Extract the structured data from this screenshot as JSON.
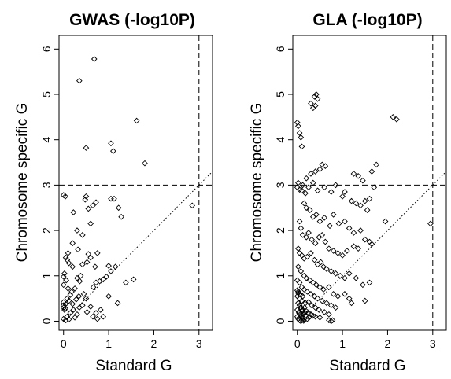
{
  "chart_data": [
    {
      "type": "scatter",
      "title": "GWAS (-log10P)",
      "xlabel": "Standard G",
      "ylabel": "Chromosome specific G",
      "xlim": [
        -0.1,
        3.3
      ],
      "ylim": [
        -0.2,
        6.3
      ],
      "xticks": [
        "0",
        "1",
        "2",
        "3"
      ],
      "yticks": [
        "0",
        "1",
        "2",
        "3",
        "4",
        "5",
        "6"
      ],
      "marker": "open-diamond",
      "reference_lines": {
        "vertical_x": 3,
        "horizontal_y": 3,
        "diagonal": "y = x"
      },
      "series": [
        {
          "points": [
            [
              0.68,
              5.78
            ],
            [
              0.35,
              5.3
            ],
            [
              1.62,
              4.42
            ],
            [
              1.05,
              3.92
            ],
            [
              1.1,
              3.75
            ],
            [
              0.5,
              3.82
            ],
            [
              1.8,
              3.48
            ],
            [
              0.0,
              2.78
            ],
            [
              0.04,
              2.75
            ],
            [
              0.5,
              2.75
            ],
            [
              0.48,
              2.68
            ],
            [
              0.72,
              2.62
            ],
            [
              0.55,
              2.48
            ],
            [
              0.65,
              2.55
            ],
            [
              1.05,
              2.7
            ],
            [
              1.12,
              2.7
            ],
            [
              1.22,
              2.5
            ],
            [
              1.28,
              2.3
            ],
            [
              0.22,
              2.4
            ],
            [
              0.6,
              2.15
            ],
            [
              2.85,
              2.55
            ],
            [
              0.3,
              2.0
            ],
            [
              0.42,
              1.9
            ],
            [
              0.2,
              1.72
            ],
            [
              0.32,
              1.58
            ],
            [
              0.1,
              1.5
            ],
            [
              0.05,
              1.4
            ],
            [
              0.08,
              1.35
            ],
            [
              0.12,
              1.28
            ],
            [
              0.2,
              1.2
            ],
            [
              0.55,
              1.48
            ],
            [
              0.6,
              1.4
            ],
            [
              0.52,
              1.3
            ],
            [
              0.42,
              1.25
            ],
            [
              0.75,
              1.5
            ],
            [
              0.7,
              1.2
            ],
            [
              1.0,
              1.22
            ],
            [
              1.05,
              1.1
            ],
            [
              0.95,
              0.98
            ],
            [
              0.88,
              0.92
            ],
            [
              0.8,
              0.88
            ],
            [
              0.72,
              0.85
            ],
            [
              0.66,
              0.75
            ],
            [
              1.15,
              1.2
            ],
            [
              1.2,
              0.4
            ],
            [
              1.38,
              0.85
            ],
            [
              1.55,
              0.92
            ],
            [
              0.02,
              1.05
            ],
            [
              0.0,
              0.98
            ],
            [
              0.06,
              0.9
            ],
            [
              0.0,
              0.8
            ],
            [
              0.1,
              0.72
            ],
            [
              0.18,
              0.65
            ],
            [
              0.25,
              0.72
            ],
            [
              0.3,
              0.95
            ],
            [
              0.38,
              1.0
            ],
            [
              0.36,
              0.88
            ],
            [
              0.15,
              0.58
            ],
            [
              0.08,
              0.5
            ],
            [
              0.0,
              0.42
            ],
            [
              0.05,
              0.38
            ],
            [
              0.12,
              0.45
            ],
            [
              0.2,
              0.38
            ],
            [
              0.28,
              0.48
            ],
            [
              0.34,
              0.55
            ],
            [
              0.45,
              0.6
            ],
            [
              0.5,
              0.5
            ],
            [
              0.42,
              0.35
            ],
            [
              0.35,
              0.3
            ],
            [
              0.22,
              0.25
            ],
            [
              0.15,
              0.18
            ],
            [
              0.08,
              0.1
            ],
            [
              0.0,
              0.05
            ],
            [
              0.05,
              0.02
            ],
            [
              0.12,
              0.04
            ],
            [
              0.25,
              0.08
            ],
            [
              0.3,
              0.15
            ],
            [
              0.52,
              0.2
            ],
            [
              0.6,
              0.32
            ],
            [
              0.72,
              0.18
            ],
            [
              0.75,
              0.05
            ],
            [
              0.82,
              0.25
            ],
            [
              0.88,
              0.1
            ],
            [
              1.0,
              0.55
            ],
            [
              0.65,
              0.1
            ],
            [
              0.0,
              0.3
            ],
            [
              0.02,
              0.25
            ],
            [
              0.0,
              0.35
            ],
            [
              0.04,
              0.28
            ]
          ]
        }
      ]
    },
    {
      "type": "scatter",
      "title": "GLA (-log10P)",
      "xlabel": "Standard G",
      "ylabel": "Chromosome specific G",
      "xlim": [
        -0.1,
        3.3
      ],
      "ylim": [
        -0.2,
        6.3
      ],
      "xticks": [
        "0",
        "1",
        "2",
        "3"
      ],
      "yticks": [
        "0",
        "1",
        "2",
        "3",
        "4",
        "5",
        "6"
      ],
      "marker": "open-diamond",
      "reference_lines": {
        "vertical_x": 3,
        "horizontal_y": 3,
        "diagonal": "y = x"
      },
      "series": [
        {
          "points": [
            [
              0.38,
              4.95
            ],
            [
              0.42,
              5.0
            ],
            [
              0.45,
              4.9
            ],
            [
              0.4,
              4.75
            ],
            [
              0.3,
              4.8
            ],
            [
              0.35,
              4.7
            ],
            [
              0.0,
              4.38
            ],
            [
              0.02,
              4.3
            ],
            [
              0.05,
              4.15
            ],
            [
              0.08,
              4.05
            ],
            [
              0.1,
              3.85
            ],
            [
              2.12,
              4.5
            ],
            [
              2.2,
              4.45
            ],
            [
              0.55,
              3.45
            ],
            [
              0.62,
              3.42
            ],
            [
              0.5,
              3.35
            ],
            [
              0.4,
              3.3
            ],
            [
              0.3,
              3.25
            ],
            [
              0.2,
              3.15
            ],
            [
              1.25,
              3.25
            ],
            [
              1.35,
              3.2
            ],
            [
              1.45,
              3.1
            ],
            [
              1.75,
              3.45
            ],
            [
              1.65,
              3.3
            ],
            [
              0.02,
              3.05
            ],
            [
              0.0,
              2.95
            ],
            [
              0.05,
              2.9
            ],
            [
              0.1,
              2.88
            ],
            [
              0.12,
              3.0
            ],
            [
              0.18,
              2.82
            ],
            [
              0.25,
              2.95
            ],
            [
              0.35,
              3.05
            ],
            [
              0.45,
              2.88
            ],
            [
              0.6,
              2.95
            ],
            [
              0.75,
              2.85
            ],
            [
              0.85,
              3.0
            ],
            [
              1.0,
              2.75
            ],
            [
              1.05,
              2.85
            ],
            [
              1.2,
              2.65
            ],
            [
              1.3,
              2.6
            ],
            [
              1.4,
              2.55
            ],
            [
              1.5,
              2.65
            ],
            [
              1.6,
              2.7
            ],
            [
              1.7,
              2.95
            ],
            [
              1.55,
              2.45
            ],
            [
              2.95,
              2.15
            ],
            [
              1.95,
              2.2
            ],
            [
              0.15,
              2.6
            ],
            [
              0.2,
              2.5
            ],
            [
              0.28,
              2.45
            ],
            [
              0.35,
              2.3
            ],
            [
              0.42,
              2.35
            ],
            [
              0.5,
              2.2
            ],
            [
              0.6,
              2.28
            ],
            [
              0.72,
              2.1
            ],
            [
              0.8,
              2.35
            ],
            [
              0.92,
              2.15
            ],
            [
              1.05,
              2.2
            ],
            [
              1.15,
              2.05
            ],
            [
              1.25,
              1.95
            ],
            [
              1.4,
              2.0
            ],
            [
              0.05,
              2.2
            ],
            [
              0.08,
              2.05
            ],
            [
              0.12,
              1.9
            ],
            [
              0.2,
              1.85
            ],
            [
              0.25,
              1.95
            ],
            [
              0.32,
              1.8
            ],
            [
              0.4,
              1.72
            ],
            [
              0.48,
              1.85
            ],
            [
              0.55,
              1.9
            ],
            [
              0.62,
              1.75
            ],
            [
              0.7,
              1.6
            ],
            [
              0.8,
              1.55
            ],
            [
              0.9,
              1.5
            ],
            [
              1.0,
              1.45
            ],
            [
              1.1,
              1.55
            ],
            [
              1.25,
              1.65
            ],
            [
              1.35,
              1.6
            ],
            [
              1.5,
              1.8
            ],
            [
              1.6,
              1.75
            ],
            [
              1.65,
              1.7
            ],
            [
              0.02,
              1.6
            ],
            [
              0.05,
              1.5
            ],
            [
              0.1,
              1.45
            ],
            [
              0.15,
              1.38
            ],
            [
              0.22,
              1.42
            ],
            [
              0.3,
              1.5
            ],
            [
              0.38,
              1.35
            ],
            [
              0.45,
              1.25
            ],
            [
              0.52,
              1.3
            ],
            [
              0.58,
              1.2
            ],
            [
              0.65,
              1.15
            ],
            [
              0.75,
              1.1
            ],
            [
              0.85,
              1.05
            ],
            [
              0.95,
              1.0
            ],
            [
              1.05,
              0.95
            ],
            [
              1.15,
              1.05
            ],
            [
              1.3,
              0.95
            ],
            [
              1.45,
              0.8
            ],
            [
              1.6,
              0.85
            ],
            [
              1.05,
              0.6
            ],
            [
              1.15,
              0.5
            ],
            [
              1.2,
              0.4
            ],
            [
              1.5,
              0.45
            ],
            [
              0.02,
              1.2
            ],
            [
              0.08,
              1.1
            ],
            [
              0.15,
              1.0
            ],
            [
              0.2,
              0.95
            ],
            [
              0.28,
              0.9
            ],
            [
              0.35,
              0.85
            ],
            [
              0.42,
              0.8
            ],
            [
              0.5,
              0.75
            ],
            [
              0.58,
              0.7
            ],
            [
              0.7,
              0.75
            ],
            [
              0.8,
              0.6
            ],
            [
              0.9,
              0.55
            ],
            [
              0.0,
              0.9
            ],
            [
              0.05,
              0.85
            ],
            [
              0.1,
              0.75
            ],
            [
              0.15,
              0.7
            ],
            [
              0.22,
              0.65
            ],
            [
              0.3,
              0.6
            ],
            [
              0.38,
              0.55
            ],
            [
              0.45,
              0.5
            ],
            [
              0.55,
              0.45
            ],
            [
              0.65,
              0.4
            ],
            [
              0.75,
              0.35
            ],
            [
              0.85,
              0.3
            ],
            [
              0.02,
              0.65
            ],
            [
              0.0,
              0.55
            ],
            [
              0.05,
              0.5
            ],
            [
              0.1,
              0.45
            ],
            [
              0.18,
              0.4
            ],
            [
              0.25,
              0.42
            ],
            [
              0.32,
              0.35
            ],
            [
              0.4,
              0.3
            ],
            [
              0.48,
              0.25
            ],
            [
              0.6,
              0.2
            ],
            [
              0.7,
              0.15
            ],
            [
              0.02,
              0.4
            ],
            [
              0.05,
              0.35
            ],
            [
              0.08,
              0.3
            ],
            [
              0.12,
              0.25
            ],
            [
              0.15,
              0.2
            ],
            [
              0.2,
              0.22
            ],
            [
              0.25,
              0.18
            ],
            [
              0.3,
              0.15
            ],
            [
              0.35,
              0.12
            ],
            [
              0.4,
              0.1
            ],
            [
              0.5,
              0.08
            ],
            [
              0.0,
              0.25
            ],
            [
              0.03,
              0.2
            ],
            [
              0.06,
              0.15
            ],
            [
              0.09,
              0.1
            ],
            [
              0.12,
              0.08
            ],
            [
              0.15,
              0.05
            ],
            [
              0.18,
              0.12
            ],
            [
              0.22,
              0.05
            ],
            [
              0.26,
              0.08
            ],
            [
              0.0,
              0.1
            ],
            [
              0.02,
              0.05
            ],
            [
              0.05,
              0.02
            ],
            [
              0.08,
              0.0
            ],
            [
              0.1,
              0.03
            ],
            [
              0.14,
              0.01
            ],
            [
              0.7,
              0.02
            ],
            [
              0.75,
              0.0
            ],
            [
              0.78,
              0.02
            ],
            [
              0.0,
              0.68
            ],
            [
              0.02,
              0.62
            ],
            [
              0.05,
              0.6
            ],
            [
              0.08,
              0.58
            ],
            [
              0.12,
              0.55
            ],
            [
              0.07,
              0.3
            ],
            [
              0.11,
              0.22
            ],
            [
              0.16,
              0.3
            ],
            [
              0.04,
              0.18
            ],
            [
              0.13,
              0.15
            ]
          ]
        }
      ]
    }
  ]
}
